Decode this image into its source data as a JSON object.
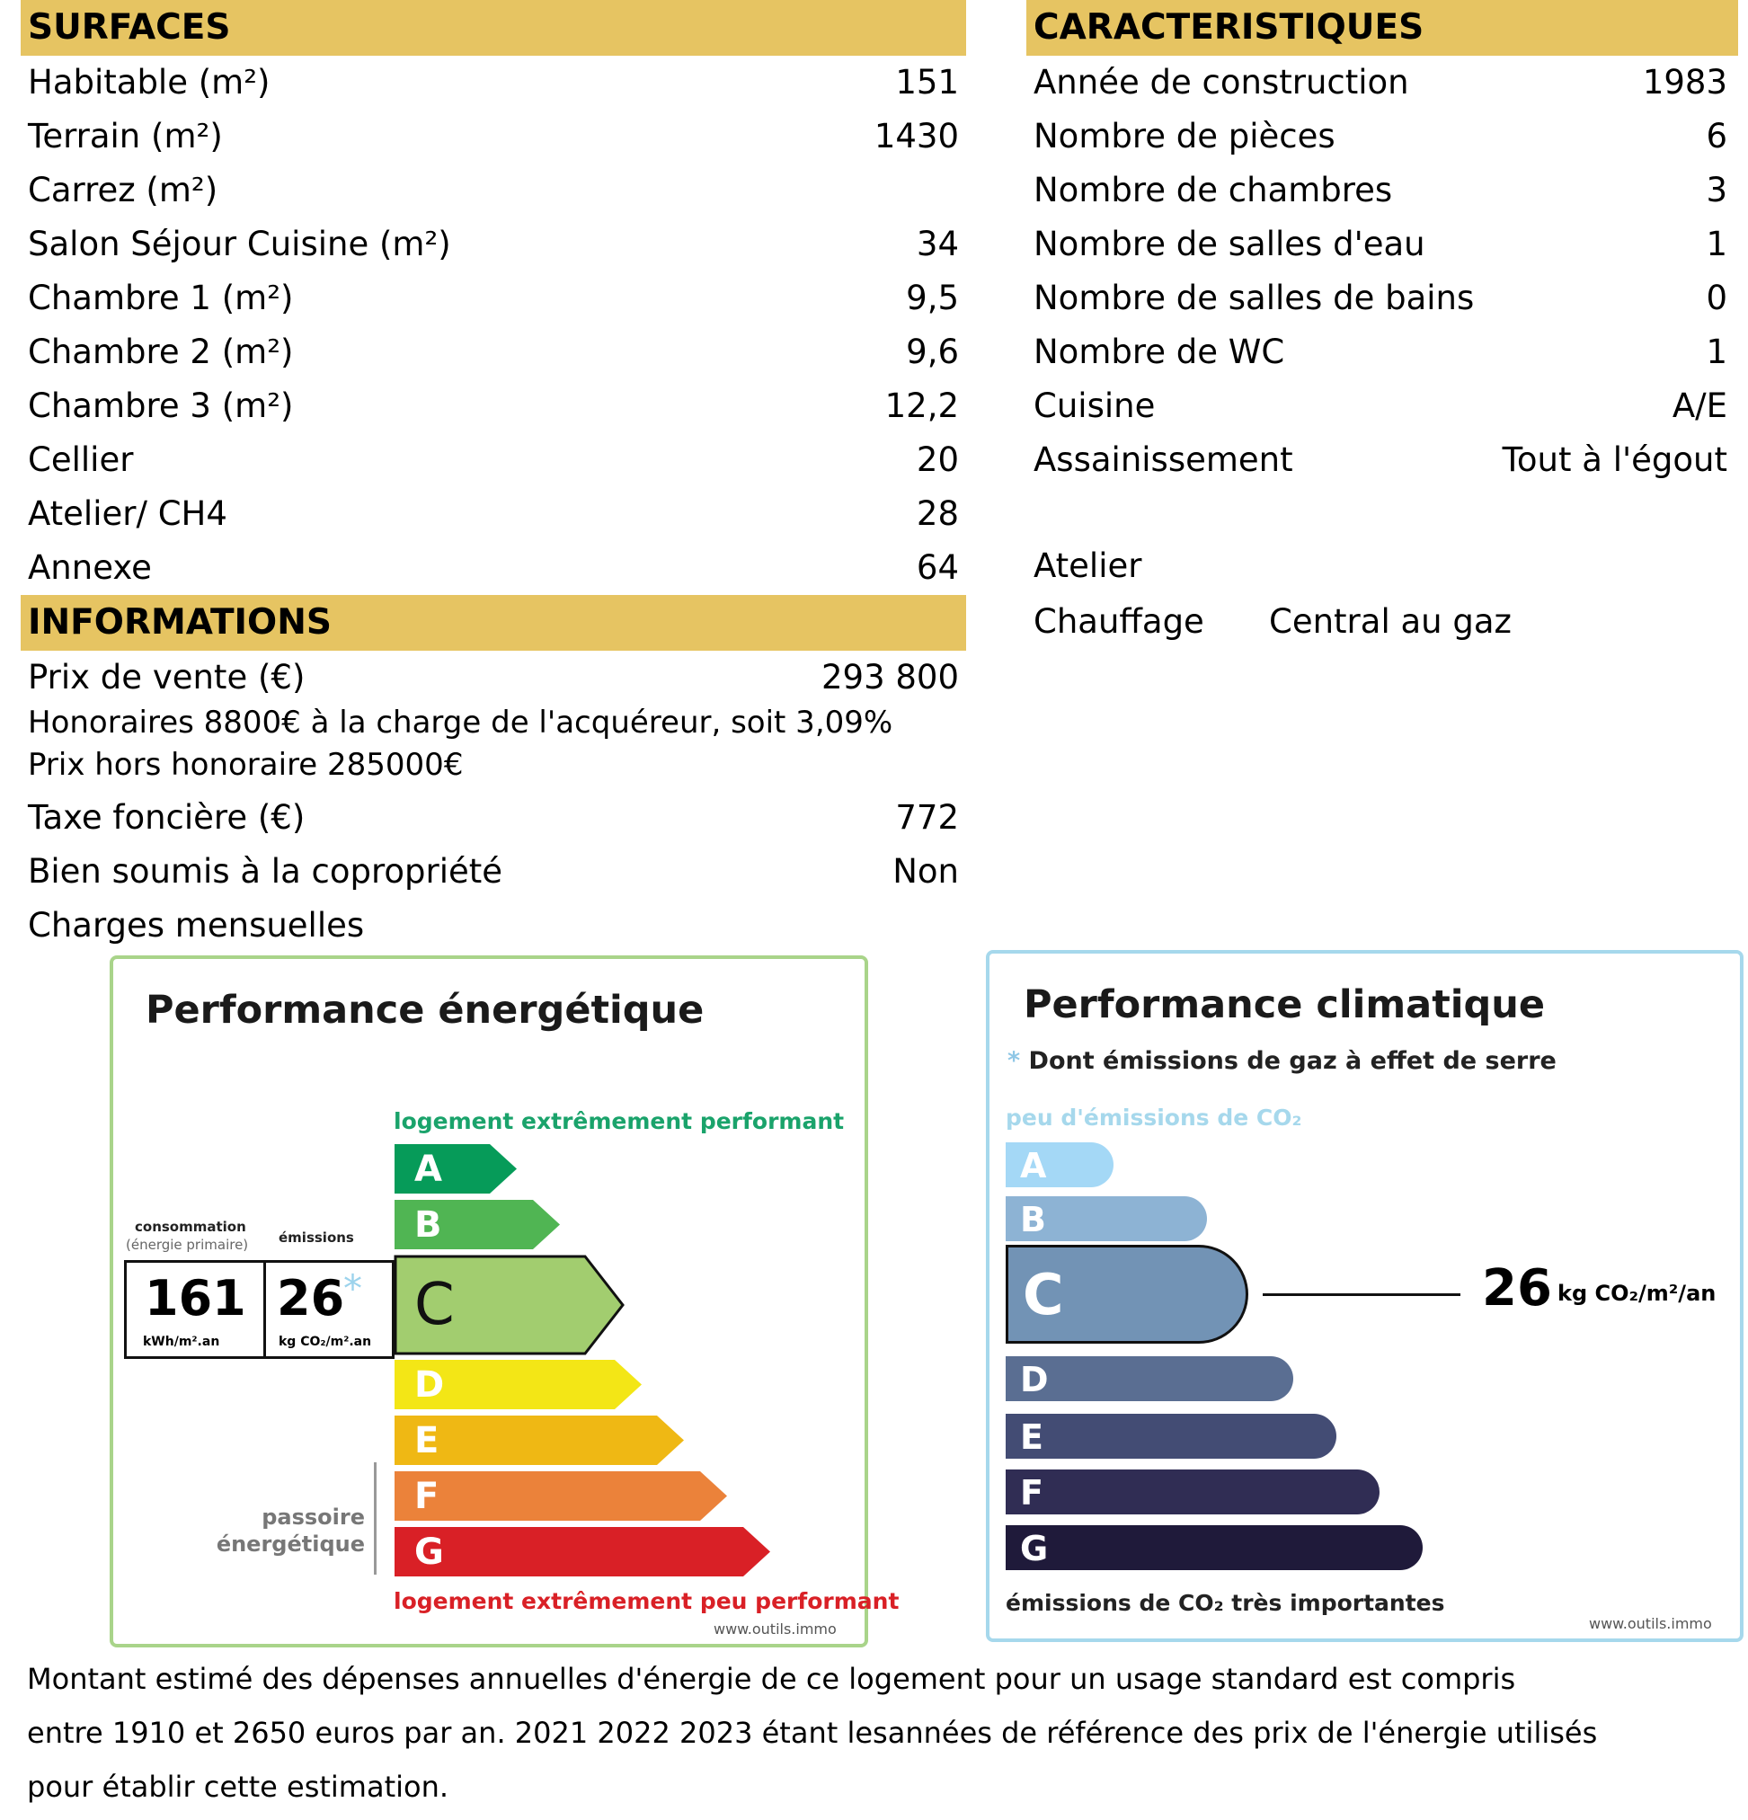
{
  "surfaces": {
    "header": "SURFACES",
    "rows": [
      {
        "label": "Habitable (m²)",
        "value": "151"
      },
      {
        "label": "Terrain (m²)",
        "value": "1430"
      },
      {
        "label": "Carrez (m²)",
        "value": ""
      },
      {
        "label": "Salon Séjour Cuisine (m²)",
        "value": "34"
      },
      {
        "label": "Chambre 1 (m²)",
        "value": "9,5"
      },
      {
        "label": "Chambre 2 (m²)",
        "value": "9,6"
      },
      {
        "label": "Chambre 3 (m²)",
        "value": "12,2"
      },
      {
        "label": "Cellier",
        "value": "20"
      },
      {
        "label": "Atelier/ CH4",
        "value": "28"
      },
      {
        "label": "Annexe",
        "value": "64"
      }
    ]
  },
  "caracteristiques": {
    "header": "CARACTERISTIQUES",
    "rows": [
      {
        "label": "Année de construction",
        "value": "1983"
      },
      {
        "label": "Nombre de pièces",
        "value": "6"
      },
      {
        "label": "Nombre de chambres",
        "value": "3"
      },
      {
        "label": "Nombre de salles d'eau",
        "value": "1"
      },
      {
        "label": "Nombre de salles de bains",
        "value": "0"
      },
      {
        "label": "Nombre de WC",
        "value": "1"
      },
      {
        "label": "Cuisine",
        "value": "A/E"
      },
      {
        "label": "Assainissement",
        "value": "Tout à l'égout"
      }
    ],
    "extra_label": "Atelier",
    "chauffage_label": "Chauffage",
    "chauffage_value": "Central au gaz"
  },
  "informations": {
    "header": "INFORMATIONS",
    "prix_label": "Prix de vente (€)",
    "prix_value": "293 800",
    "note1": "Honoraires 8800€ à la charge de l'acquéreur, soit 3,09%",
    "note2": "Prix hors honoraire 285000€",
    "rows": [
      {
        "label": "Taxe foncière (€)",
        "value": "772"
      },
      {
        "label": "Bien soumis à la copropriété",
        "value": "Non"
      },
      {
        "label": "Charges mensuelles",
        "value": ""
      }
    ]
  },
  "energy": {
    "title": "Performance énergétique",
    "top_label": "logement extrêmement performant",
    "bottom_label": "logement extrêmement peu performant",
    "passoire": "passoire énergétique",
    "consommation_label": "consommation",
    "energie_primaire": "(énergie primaire)",
    "emissions_label": "émissions",
    "consumption_value": "161",
    "consumption_unit": "kWh/m².an",
    "emissions_value": "26",
    "emissions_star": "*",
    "emissions_unit": "kg CO₂/m².an",
    "current_class": "C",
    "classes": [
      {
        "letter": "A",
        "color": "#069b59"
      },
      {
        "letter": "B",
        "color": "#50b553"
      },
      {
        "letter": "C",
        "color": "#a2cd6f"
      },
      {
        "letter": "D",
        "color": "#f3e616"
      },
      {
        "letter": "E",
        "color": "#efb814"
      },
      {
        "letter": "F",
        "color": "#eb823a"
      },
      {
        "letter": "G",
        "color": "#d92026"
      }
    ],
    "website": "www.outils.immo"
  },
  "climate": {
    "title": "Performance climatique",
    "subtitle_star": "*",
    "subtitle": "Dont émissions de gaz à effet de serre",
    "top_label": "peu d'émissions de CO₂",
    "bottom_label": "émissions de CO₂ très importantes",
    "value": "26",
    "unit": "kg CO₂/m²/an",
    "current_class": "C",
    "classes": [
      {
        "letter": "A",
        "color": "#a4d8f6"
      },
      {
        "letter": "B",
        "color": "#8db3d4"
      },
      {
        "letter": "C",
        "color": "#7293b5"
      },
      {
        "letter": "D",
        "color": "#5a6e92"
      },
      {
        "letter": "E",
        "color": "#434c74"
      },
      {
        "letter": "F",
        "color": "#302d54"
      },
      {
        "letter": "G",
        "color": "#1f1a3a"
      }
    ],
    "website": "www.outils.immo"
  },
  "footer": {
    "line1": "Montant estimé des dépenses annuelles d'énergie de ce logement pour un usage standard est compris",
    "line2": "entre 1910 et 2650 euros par an. 2021 2022 2023 étant lesannées de référence des prix de l'énergie utilisés",
    "line3": "pour établir cette estimation."
  }
}
